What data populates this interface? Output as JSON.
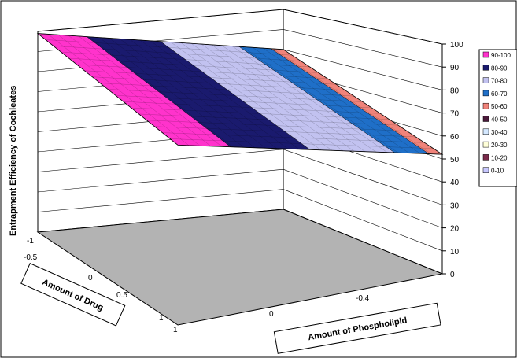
{
  "chart_data": {
    "type": "surface",
    "ylabel": "Entrapment Efficiency of Cochleates",
    "xlabel": "Amount of Drug",
    "zlabel": "Amount of Phospholipid",
    "zlim": [
      0,
      100
    ],
    "vertical_ticks": [
      "0",
      "10",
      "20",
      "30",
      "40",
      "50",
      "60",
      "70",
      "80",
      "90",
      "100"
    ],
    "drug_ticks": [
      "-1",
      "-0.5",
      "0",
      "0.5",
      "1"
    ],
    "phospholipid_ticks": [
      "1",
      "0",
      "-0.4"
    ],
    "legend_position": "right",
    "legend": [
      {
        "label": "90-100",
        "color": "#ff33cc"
      },
      {
        "label": "80-90",
        "color": "#1a1a6e"
      },
      {
        "label": "70-80",
        "color": "#c2c2f0"
      },
      {
        "label": "60-70",
        "color": "#1f6fc8"
      },
      {
        "label": "50-60",
        "color": "#f0837a"
      },
      {
        "label": "40-50",
        "color": "#4a1a3a"
      },
      {
        "label": "30-40",
        "color": "#d4e8ff"
      },
      {
        "label": "20-30",
        "color": "#ffffd9"
      },
      {
        "label": "10-20",
        "color": "#7a2a4a"
      },
      {
        "label": "0-10",
        "color": "#c8c8ff"
      }
    ],
    "surface_bands_visible": [
      "90-100",
      "80-90",
      "70-80",
      "60-70",
      "50-60"
    ],
    "surface_corner_values": {
      "back_left": 99,
      "back_right": 80,
      "front_left": 78,
      "front_right": 52
    },
    "floor_color": "#b3b3b3",
    "gridlines": true
  }
}
